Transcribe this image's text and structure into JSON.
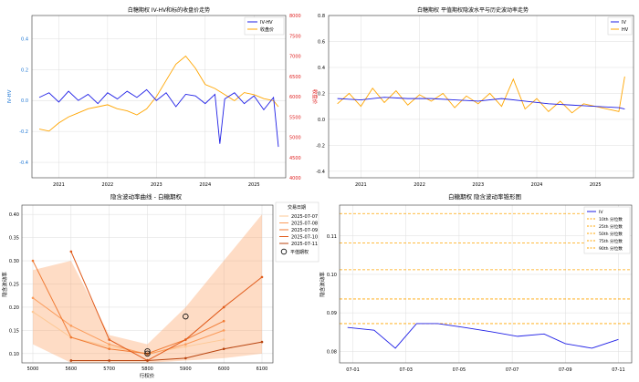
{
  "colors": {
    "blue": "#1f1fe6",
    "orange": "#ffa500",
    "red_axis": "#e02020",
    "blue_axis": "#1f77d4",
    "vol1": "#fdc895",
    "vol2": "#fb9b5a",
    "vol3": "#f07a33",
    "vol4": "#e05a1a",
    "vol5": "#b8430e",
    "grid": "#dddddd",
    "pct": "#ffa500"
  },
  "chart_data": [
    {
      "type": "line",
      "title": "白糖期权 IV-HV和标的收盘价走势",
      "xlabel": "",
      "ylabel": "IV-HV",
      "y2label": "收盘价",
      "ylim": [
        -0.5,
        0.55
      ],
      "yticks": [
        "0.4",
        "0.2",
        "0.0",
        "-0.2",
        "-0.4"
      ],
      "ytick_vals": [
        0.4,
        0.2,
        0.0,
        -0.2,
        -0.4
      ],
      "y2lim": [
        4000,
        8000
      ],
      "y2ticks": [
        "8000",
        "7500",
        "7000",
        "6500",
        "6000",
        "5500",
        "5000",
        "4500",
        "4000"
      ],
      "y2tick_vals": [
        8000,
        7500,
        7000,
        6500,
        6000,
        5500,
        5000,
        4500,
        4000
      ],
      "xlim": [
        2020.45,
        2025.65
      ],
      "xticks": [
        "2021",
        "2022",
        "2023",
        "2024",
        "2025"
      ],
      "xtick_vals": [
        2021,
        2022,
        2023,
        2024,
        2025
      ],
      "legend": [
        "IV-HV",
        "收盘价"
      ],
      "legend_position": "top-right",
      "iv_hv_x": [
        2020.6,
        2020.8,
        2021.0,
        2021.2,
        2021.4,
        2021.6,
        2021.8,
        2022.0,
        2022.2,
        2022.4,
        2022.6,
        2022.8,
        2023.0,
        2023.2,
        2023.4,
        2023.6,
        2023.8,
        2024.0,
        2024.2,
        2024.3,
        2024.4,
        2024.6,
        2024.8,
        2025.0,
        2025.2,
        2025.4,
        2025.5
      ],
      "iv_hv_y": [
        0.02,
        0.05,
        -0.01,
        0.06,
        0.0,
        0.04,
        -0.02,
        0.05,
        0.01,
        0.06,
        0.02,
        0.07,
        0.0,
        0.05,
        -0.04,
        0.04,
        0.03,
        -0.02,
        0.04,
        -0.28,
        0.01,
        0.05,
        -0.02,
        0.03,
        -0.06,
        0.02,
        -0.3
      ],
      "close_x": [
        2020.6,
        2020.8,
        2021.0,
        2021.2,
        2021.4,
        2021.6,
        2021.8,
        2022.0,
        2022.2,
        2022.4,
        2022.6,
        2022.8,
        2023.0,
        2023.2,
        2023.4,
        2023.6,
        2023.8,
        2024.0,
        2024.2,
        2024.4,
        2024.6,
        2024.8,
        2025.0,
        2025.2,
        2025.4,
        2025.5
      ],
      "close_y": [
        5200,
        5150,
        5350,
        5500,
        5600,
        5700,
        5750,
        5800,
        5700,
        5650,
        5550,
        5700,
        6000,
        6400,
        6800,
        7000,
        6700,
        6300,
        6200,
        6050,
        5900,
        6100,
        6050,
        5950,
        5900,
        5750
      ]
    },
    {
      "type": "line",
      "title": "白糖期权 平值期权隐波水平与历史波动率走势",
      "ylim": [
        -0.45,
        0.8
      ],
      "yticks": [
        "0.8",
        "0.6",
        "0.4",
        "0.2",
        "0.0",
        "-0.2",
        "-0.4"
      ],
      "ytick_vals": [
        0.8,
        0.6,
        0.4,
        0.2,
        0.0,
        -0.2,
        -0.4
      ],
      "xlim": [
        2020.45,
        2025.65
      ],
      "xticks": [
        "2021",
        "2022",
        "2023",
        "2024",
        "2025"
      ],
      "xtick_vals": [
        2021,
        2022,
        2023,
        2024,
        2025
      ],
      "legend": [
        "IV",
        "HV"
      ],
      "legend_position": "top-right",
      "iv_x": [
        2020.6,
        2021.0,
        2021.4,
        2021.8,
        2022.2,
        2022.6,
        2023.0,
        2023.4,
        2023.8,
        2024.2,
        2024.6,
        2025.0,
        2025.4,
        2025.5
      ],
      "iv_y": [
        0.16,
        0.15,
        0.17,
        0.16,
        0.16,
        0.15,
        0.14,
        0.16,
        0.14,
        0.12,
        0.11,
        0.1,
        0.09,
        0.08
      ],
      "hv_x": [
        2020.6,
        2020.8,
        2021.0,
        2021.2,
        2021.4,
        2021.6,
        2021.8,
        2022.0,
        2022.2,
        2022.4,
        2022.6,
        2022.8,
        2023.0,
        2023.2,
        2023.4,
        2023.6,
        2023.8,
        2024.0,
        2024.2,
        2024.4,
        2024.6,
        2024.8,
        2025.0,
        2025.2,
        2025.4,
        2025.5
      ],
      "hv_y": [
        0.12,
        0.2,
        0.1,
        0.24,
        0.13,
        0.22,
        0.11,
        0.19,
        0.14,
        0.2,
        0.09,
        0.18,
        0.12,
        0.2,
        0.1,
        0.31,
        0.08,
        0.16,
        0.06,
        0.14,
        0.05,
        0.12,
        0.1,
        0.08,
        0.06,
        0.33
      ]
    },
    {
      "type": "line",
      "title": "隐含波动率曲线 - 白糖期权",
      "xlabel": "行权价",
      "ylabel": "隐含波动率",
      "xlim": [
        5000,
        6100
      ],
      "xticks": [
        "5000",
        "5600",
        "5700",
        "5800",
        "5900",
        "6000",
        "6100"
      ],
      "xtick_vals": [
        5000,
        5600,
        5700,
        5800,
        5900,
        6000,
        6100
      ],
      "ylim": [
        0.08,
        0.42
      ],
      "yticks": [
        "0.40",
        "0.35",
        "0.30",
        "0.25",
        "0.20",
        "0.15",
        "0.10"
      ],
      "ytick_vals": [
        0.4,
        0.35,
        0.3,
        0.25,
        0.2,
        0.15,
        0.1
      ],
      "legend_title": "交易日期",
      "legend": [
        "2025-07-07",
        "2025-07-08",
        "2025-07-09",
        "2025-07-10",
        "2025-07-11"
      ],
      "atm_label": "平值期权",
      "series": [
        {
          "name": "2025-07-07",
          "x": [
            5000,
            5600,
            5700,
            5800,
            5900,
            6000
          ],
          "y": [
            0.19,
            0.135,
            0.115,
            0.1,
            0.115,
            0.13
          ]
        },
        {
          "name": "2025-07-08",
          "x": [
            5000,
            5600,
            5700,
            5800,
            5900,
            6000
          ],
          "y": [
            0.22,
            0.16,
            0.12,
            0.098,
            0.12,
            0.15
          ]
        },
        {
          "name": "2025-07-09",
          "x": [
            5000,
            5600,
            5700,
            5800,
            5900,
            6000
          ],
          "y": [
            0.3,
            0.135,
            0.11,
            0.1,
            0.13,
            0.17
          ]
        },
        {
          "name": "2025-07-10",
          "x": [
            5600,
            5700,
            5800,
            5900,
            6000,
            6100
          ],
          "y": [
            0.32,
            0.13,
            0.085,
            0.13,
            0.2,
            0.265
          ]
        },
        {
          "name": "2025-07-11",
          "x": [
            5600,
            5700,
            5800,
            5900,
            6000,
            6100
          ],
          "y": [
            0.085,
            0.085,
            0.085,
            0.09,
            0.11,
            0.125
          ]
        }
      ],
      "atm_points": [
        {
          "x": 5800,
          "y": 0.105
        },
        {
          "x": 5800,
          "y": 0.1
        },
        {
          "x": 5900,
          "y": 0.18
        }
      ],
      "band": {
        "x": [
          5000,
          5600,
          5700,
          5800,
          5900,
          6000,
          6100
        ],
        "lo": [
          0.12,
          0.08,
          0.08,
          0.08,
          0.085,
          0.09,
          0.1
        ],
        "hi": [
          0.28,
          0.3,
          0.14,
          0.12,
          0.2,
          0.3,
          0.4
        ]
      }
    },
    {
      "type": "line",
      "title": "白糖期权 隐含波动率锥形图",
      "xlabel": "",
      "ylabel": "隐含波动率",
      "xticks": [
        "07-01",
        "07-03",
        "07-05",
        "07-07",
        "07-09",
        "07-11"
      ],
      "xtick_vals": [
        1,
        3,
        5,
        7,
        9,
        11
      ],
      "xlim": [
        0.5,
        11.5
      ],
      "ylim": [
        0.077,
        0.118
      ],
      "yticks": [
        "0.11",
        "0.10",
        "0.09",
        "0.08"
      ],
      "ytick_vals": [
        0.11,
        0.1,
        0.09,
        0.08
      ],
      "legend": [
        "IV",
        "10th 分位数",
        "25th 分位数",
        "50th 分位数",
        "75th 分位数",
        "90th 分位数"
      ],
      "legend_position": "top-right",
      "iv_x": [
        0.8,
        1.8,
        2.6,
        3.4,
        4.2,
        5.2,
        6.2,
        7.2,
        8.2,
        9.0,
        10.0,
        11.0
      ],
      "iv_y": [
        0.0862,
        0.0855,
        0.0808,
        0.0872,
        0.0872,
        0.0862,
        0.0851,
        0.0839,
        0.0845,
        0.082,
        0.0808,
        0.0831
      ],
      "percentiles": [
        0.0872,
        0.0936,
        0.1012,
        0.1082,
        0.1158
      ]
    }
  ]
}
